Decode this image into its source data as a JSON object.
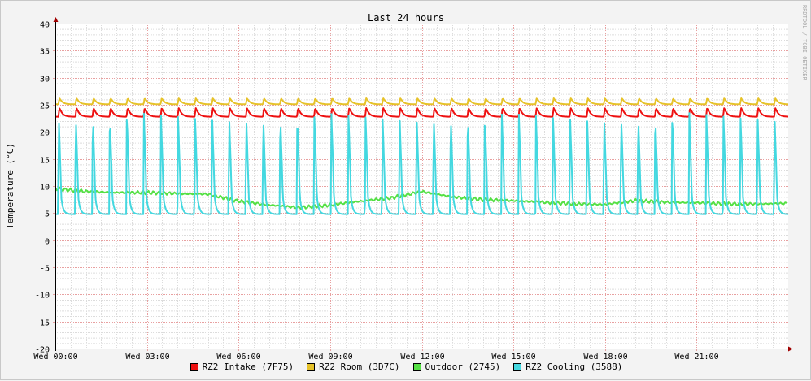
{
  "chart_data": {
    "type": "line",
    "title": "Last 24 hours",
    "ylabel": "Temperature (°C)",
    "watermark": "RRDTOOL / TOBI OETIKER",
    "ylim": [
      -20,
      40
    ],
    "y_ticks": [
      "40",
      "35",
      "30",
      "25",
      "20",
      "15",
      "10",
      "5",
      "0",
      "-5",
      "-10",
      "-15",
      "-20"
    ],
    "x_range_hours": [
      0,
      24
    ],
    "x_ticks": [
      {
        "hour": 0,
        "label": "Wed 00:00"
      },
      {
        "hour": 3,
        "label": "Wed 03:00"
      },
      {
        "hour": 6,
        "label": "Wed 06:00"
      },
      {
        "hour": 9,
        "label": "Wed 09:00"
      },
      {
        "hour": 12,
        "label": "Wed 12:00"
      },
      {
        "hour": 15,
        "label": "Wed 15:00"
      },
      {
        "hour": 18,
        "label": "Wed 18:00"
      },
      {
        "hour": 21,
        "label": "Wed 21:00"
      }
    ],
    "grid": true,
    "legend_position": "bottom",
    "series": [
      {
        "name": "RZ2 Intake (7F75)",
        "color": "#ee1111",
        "pattern": "sawtooth",
        "base": 22.8,
        "peak": 24.4,
        "cycles": 43,
        "first_cycle_hour": 0.1
      },
      {
        "name": "RZ2 Room (3D7C)",
        "color": "#e6c229",
        "pattern": "sawtooth",
        "base": 25.1,
        "peak": 26.2,
        "cycles": 43,
        "first_cycle_hour": 0.1
      },
      {
        "name": "Outdoor (2745)",
        "color": "#55e044",
        "pattern": "trend",
        "x": [
          0,
          1,
          2,
          3,
          4,
          5,
          6,
          7,
          8,
          9,
          10,
          11,
          12,
          13,
          14,
          15,
          16,
          17,
          18,
          19,
          20,
          21,
          22,
          23,
          24
        ],
        "y": [
          9.5,
          9.0,
          8.8,
          8.8,
          8.6,
          8.5,
          7.2,
          6.5,
          6.0,
          6.5,
          7.2,
          7.8,
          9.0,
          8.0,
          7.5,
          7.3,
          7.0,
          6.7,
          6.6,
          7.3,
          7.0,
          6.9,
          6.7,
          6.7,
          6.8
        ]
      },
      {
        "name": "RZ2 Cooling (3588)",
        "color": "#44d8e0",
        "pattern": "spike",
        "base": 4.8,
        "peak": 23.5,
        "cycles": 43,
        "first_cycle_hour": 0.65
      }
    ]
  }
}
